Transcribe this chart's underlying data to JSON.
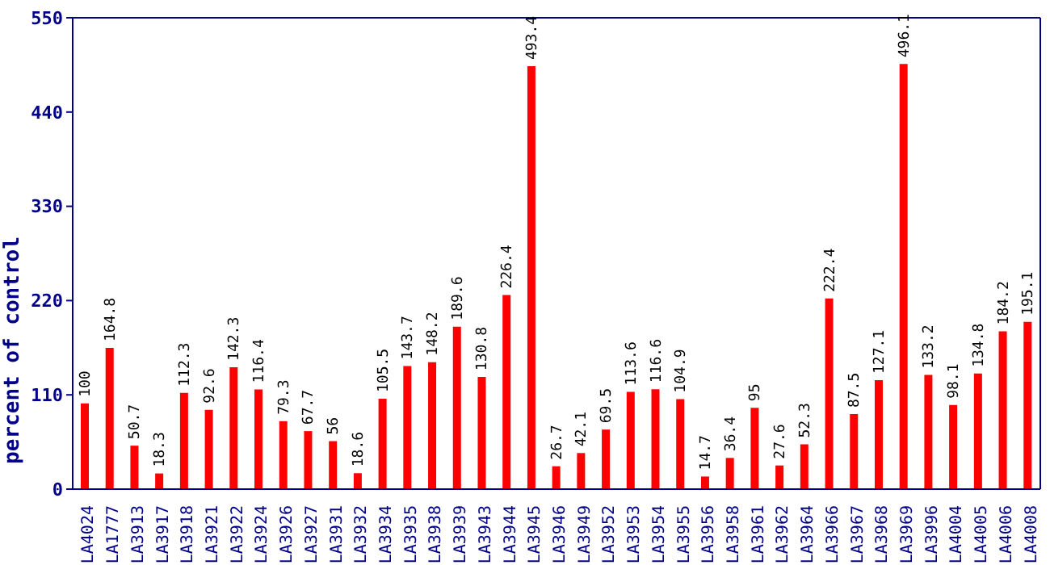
{
  "chart_data": {
    "type": "bar",
    "ylabel": "percent of control",
    "categories": [
      "LA4024",
      "LA1777",
      "LA3913",
      "LA3917",
      "LA3918",
      "LA3921",
      "LA3922",
      "LA3924",
      "LA3926",
      "LA3927",
      "LA3931",
      "LA3932",
      "LA3934",
      "LA3935",
      "LA3938",
      "LA3939",
      "LA3943",
      "LA3944",
      "LA3945",
      "LA3946",
      "LA3949",
      "LA3952",
      "LA3953",
      "LA3954",
      "LA3955",
      "LA3956",
      "LA3958",
      "LA3961",
      "LA3962",
      "LA3964",
      "LA3966",
      "LA3967",
      "LA3968",
      "LA3969",
      "LA3996",
      "LA4004",
      "LA4005",
      "LA4006",
      "LA4008"
    ],
    "values": [
      100,
      164.8,
      50.7,
      18.3,
      112.3,
      92.6,
      142.3,
      116.4,
      79.3,
      67.7,
      56,
      18.6,
      105.5,
      143.7,
      148.2,
      189.6,
      130.8,
      226.4,
      493.4,
      26.7,
      42.1,
      69.5,
      113.6,
      116.6,
      104.9,
      14.7,
      36.4,
      95,
      27.6,
      52.3,
      222.4,
      87.5,
      127.1,
      496.1,
      133.2,
      98.1,
      134.8,
      184.2,
      195.1
    ],
    "color": "#ff0000",
    "ylim": [
      0,
      550
    ],
    "yticks": [
      0,
      110,
      220,
      330,
      440,
      550
    ],
    "grid": false,
    "data_labels": true
  }
}
